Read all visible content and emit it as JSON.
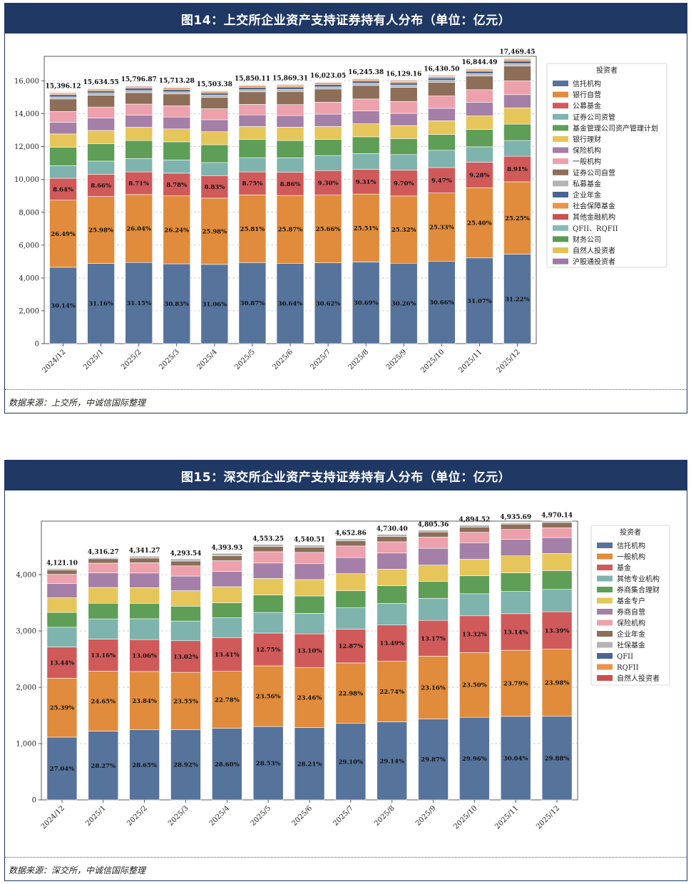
{
  "charts": [
    {
      "title": "图14：上交所企业资产支持证券持有人分布（单位：亿元）",
      "source": "数据来源：上交所，中诚信国际整理",
      "chart_data": {
        "type": "bar",
        "stacked": true,
        "title": "图14：上交所企业资产支持证券持有人分布（单位：亿元）",
        "categories": [
          "2024/12",
          "2025/1",
          "2025/2",
          "2025/3",
          "2025/4",
          "2025/5",
          "2025/6",
          "2025/7",
          "2025/8",
          "2025/9",
          "2025/10",
          "2025/11",
          "2025/12"
        ],
        "totals": [
          15396.12,
          15634.55,
          15796.87,
          15713.28,
          15503.38,
          15850.11,
          15869.31,
          16023.05,
          16245.38,
          16129.16,
          16430.5,
          16844.49,
          17469.45
        ],
        "total_labels": [
          "15,396.12",
          "15,634.55",
          "15,796.87",
          "15,713.28",
          "15,503.38",
          "15,850.11",
          "15,869.31",
          "16,023.05",
          "16,245.38",
          "16,129.16",
          "16,430.50",
          "16,844.49",
          "17,469.45"
        ],
        "ylim": [
          0,
          17500
        ],
        "yticks": [
          0,
          2000,
          4000,
          6000,
          8000,
          10000,
          12000,
          14000,
          16000
        ],
        "ytick_labels": [
          "0",
          "2,000",
          "4,000",
          "6,000",
          "8,000",
          "10,000",
          "12,000",
          "14,000",
          "16,000"
        ],
        "legend_title": "投资者",
        "legend_position": "right",
        "series": [
          {
            "name": "信托机构",
            "color": "#56739c",
            "pct": [
              30.14,
              31.16,
              31.15,
              30.83,
              31.06,
              30.87,
              30.64,
              30.62,
              30.69,
              30.26,
              30.66,
              31.07,
              31.22
            ],
            "labels": [
              "30.14%",
              "31.16%",
              "31.15%",
              "30.83%",
              "31.06%",
              "30.87%",
              "30.64%",
              "30.62%",
              "30.69%",
              "30.26%",
              "30.66%",
              "31.07%",
              "31.22%"
            ]
          },
          {
            "name": "银行自营",
            "color": "#e08c3c",
            "pct": [
              26.49,
              25.98,
              26.04,
              26.24,
              25.98,
              25.81,
              25.87,
              25.66,
              25.51,
              25.32,
              25.33,
              25.4,
              25.25
            ],
            "labels": [
              "26.49%",
              "25.98%",
              "26.04%",
              "26.24%",
              "25.98%",
              "25.81%",
              "25.87%",
              "25.66%",
              "25.51%",
              "25.32%",
              "25.33%",
              "25.40%",
              "25.25%"
            ]
          },
          {
            "name": "公募基金",
            "color": "#d05a5a",
            "pct": [
              8.64,
              8.66,
              8.71,
              8.78,
              8.83,
              8.75,
              8.86,
              9.3,
              9.31,
              9.7,
              9.47,
              9.28,
              8.91
            ],
            "labels": [
              "8.64%",
              "8.66%",
              "8.71%",
              "8.78%",
              "8.83%",
              "8.75%",
              "8.86%",
              "9.30%",
              "9.31%",
              "9.70%",
              "9.47%",
              "9.28%",
              "8.91%"
            ]
          },
          {
            "name": "证券公司资管",
            "color": "#7fb3ad",
            "pct": [
              5.0,
              5.1,
              5.1,
              5.1,
              5.1,
              5.4,
              5.5,
              5.7,
              5.9,
              5.9,
              6.4,
              5.6,
              5.5
            ]
          },
          {
            "name": "基金管理公司资产管理计划",
            "color": "#5e9e57",
            "pct": [
              7.2,
              6.8,
              6.9,
              7.0,
              7.0,
              7.0,
              6.6,
              6.1,
              6.3,
              6.0,
              5.9,
              6.3,
              5.7
            ]
          },
          {
            "name": "银行理财",
            "color": "#e6c65a",
            "pct": [
              5.3,
              5.1,
              5.1,
              5.0,
              5.1,
              4.9,
              5.1,
              4.9,
              4.9,
              4.9,
              5.1,
              4.9,
              5.7
            ]
          },
          {
            "name": "保险机构",
            "color": "#a47fa8",
            "pct": [
              4.6,
              4.8,
              4.7,
              4.6,
              4.7,
              4.4,
              4.4,
              4.7,
              4.8,
              4.6,
              4.6,
              4.9,
              4.6
            ]
          },
          {
            "name": "一般机构",
            "color": "#eca1ac",
            "pct": [
              4.3,
              4.3,
              4.2,
              4.3,
              4.3,
              4.0,
              4.2,
              4.5,
              4.5,
              4.5,
              4.6,
              4.6,
              4.8
            ]
          },
          {
            "name": "证券公司自营",
            "color": "#8c6e59",
            "pct": [
              4.9,
              4.6,
              4.4,
              4.6,
              4.5,
              4.8,
              5.0,
              5.0,
              5.1,
              5.3,
              5.0,
              5.0,
              5.2
            ]
          },
          {
            "name": "私募基金",
            "color": "#b4b4b4",
            "pct": [
              0.8,
              0.8,
              0.8,
              0.8,
              0.8,
              0.8,
              0.8,
              0.8,
              0.8,
              0.8,
              0.8,
              0.8,
              0.8
            ]
          },
          {
            "name": "企业年金",
            "color": "#4a6591",
            "pct": [
              0.9,
              0.9,
              0.9,
              0.9,
              0.9,
              0.9,
              0.9,
              0.9,
              0.9,
              0.9,
              0.9,
              0.9,
              0.9
            ]
          },
          {
            "name": "社会保障基金",
            "color": "#e8954b",
            "pct": [
              0.5,
              0.5,
              0.5,
              0.5,
              0.5,
              0.5,
              0.5,
              0.5,
              0.5,
              0.5,
              0.5,
              0.5,
              0.5
            ]
          },
          {
            "name": "其他金融机构",
            "color": "#c85151",
            "pct": [
              0.3,
              0.3,
              0.3,
              0.3,
              0.3,
              0.3,
              0.3,
              0.3,
              0.3,
              0.3,
              0.3,
              0.3,
              0.3
            ]
          },
          {
            "name": "QFII、RQFII",
            "color": "#86bcb6",
            "pct": [
              0.2,
              0.2,
              0.2,
              0.2,
              0.2,
              0.2,
              0.2,
              0.2,
              0.2,
              0.2,
              0.2,
              0.2,
              0.2
            ]
          },
          {
            "name": "财务公司",
            "color": "#5b9a55",
            "pct": [
              0.2,
              0.2,
              0.2,
              0.2,
              0.2,
              0.2,
              0.2,
              0.2,
              0.2,
              0.2,
              0.2,
              0.2,
              0.2
            ]
          },
          {
            "name": "自然人投资者",
            "color": "#e3c357",
            "pct": [
              0.2,
              0.2,
              0.2,
              0.2,
              0.2,
              0.2,
              0.2,
              0.2,
              0.2,
              0.2,
              0.2,
              0.2,
              0.2
            ]
          },
          {
            "name": "沪股通投资者",
            "color": "#9d7aa3",
            "pct": [
              0.1,
              0.1,
              0.1,
              0.1,
              0.1,
              0.1,
              0.1,
              0.1,
              0.1,
              0.1,
              0.1,
              0.1,
              0.1
            ]
          }
        ]
      }
    },
    {
      "title": "图15：深交所企业资产支持证券持有人分布（单位：亿元）",
      "source": "数据来源：深交所，中诚信国际整理",
      "chart_data": {
        "type": "bar",
        "stacked": true,
        "title": "图15：深交所企业资产支持证券持有人分布（单位：亿元）",
        "categories": [
          "2024/12",
          "2025/1",
          "2025/2",
          "2025/3",
          "2025/4",
          "2025/5",
          "2025/6",
          "2025/7",
          "2025/8",
          "2025/9",
          "2025/10",
          "2025/11",
          "2025/12"
        ],
        "totals": [
          4121.1,
          4316.27,
          4341.27,
          4293.54,
          4393.93,
          4553.25,
          4540.51,
          4652.86,
          4730.4,
          4805.36,
          4894.52,
          4935.69,
          4970.14
        ],
        "total_labels": [
          "4,121.10",
          "4,316.27",
          "4,341.27",
          "4,293.54",
          "4,393.93",
          "4,553.25",
          "4,540.51",
          "4,652.86",
          "4,730.40",
          "4,805.36",
          "4,894.52",
          "4,935.69",
          "4,970.14"
        ],
        "ylim": [
          0,
          4950
        ],
        "yticks": [
          0,
          1000,
          2000,
          3000,
          4000
        ],
        "ytick_labels": [
          "0",
          "1,000",
          "2,000",
          "3,000",
          "4,000"
        ],
        "legend_title": "投资者",
        "legend_position": "right",
        "series": [
          {
            "name": "信托机构",
            "color": "#56739c",
            "pct": [
              27.04,
              28.27,
              28.65,
              28.92,
              28.6,
              28.53,
              28.21,
              29.1,
              29.14,
              29.87,
              29.96,
              30.04,
              29.88
            ],
            "labels": [
              "27.04%",
              "28.27%",
              "28.65%",
              "28.92%",
              "28.60%",
              "28.53%",
              "28.21%",
              "29.10%",
              "29.14%",
              "29.87%",
              "29.96%",
              "30.04%",
              "29.88%"
            ]
          },
          {
            "name": "一般机构",
            "color": "#e08c3c",
            "pct": [
              25.39,
              24.65,
              23.84,
              23.55,
              22.78,
              23.56,
              23.46,
              22.98,
              22.74,
              23.16,
              23.5,
              23.79,
              23.98
            ],
            "labels": [
              "25.39%",
              "24.65%",
              "23.84%",
              "23.55%",
              "22.78%",
              "23.56%",
              "23.46%",
              "22.98%",
              "22.74%",
              "23.16%",
              "23.50%",
              "23.79%",
              "23.98%"
            ]
          },
          {
            "name": "基金",
            "color": "#d05a5a",
            "pct": [
              13.44,
              13.16,
              13.06,
              13.02,
              13.41,
              12.75,
              13.1,
              12.87,
              13.49,
              13.17,
              13.32,
              13.14,
              13.39
            ],
            "labels": [
              "13.44%",
              "13.16%",
              "13.06%",
              "13.02%",
              "13.41%",
              "12.75%",
              "13.10%",
              "12.87%",
              "13.49%",
              "13.17%",
              "13.32%",
              "13.14%",
              "13.39%"
            ]
          },
          {
            "name": "其他专业机构",
            "color": "#7fb3ad",
            "pct": [
              8.5,
              8.3,
              8.5,
              8.1,
              8.0,
              8.0,
              8.0,
              8.2,
              8.1,
              8.1,
              8.0,
              8.0,
              8.0
            ]
          },
          {
            "name": "券商集合理财",
            "color": "#5e9e57",
            "pct": [
              6.4,
              6.4,
              6.3,
              6.1,
              6.0,
              6.8,
              6.8,
              6.4,
              6.6,
              6.3,
              6.5,
              6.7,
              6.7
            ]
          },
          {
            "name": "基金专户",
            "color": "#e6c65a",
            "pct": [
              6.3,
              6.5,
              6.4,
              6.4,
              6.4,
              6.4,
              6.4,
              6.5,
              6.2,
              6.0,
              6.0,
              6.1,
              6.1
            ]
          },
          {
            "name": "券商自营",
            "color": "#a47fa8",
            "pct": [
              6.1,
              6.0,
              6.0,
              6.0,
              6.1,
              6.0,
              6.3,
              6.1,
              6.0,
              6.2,
              6.0,
              5.9,
              5.7
            ]
          },
          {
            "name": "保险机构",
            "color": "#eca1ac",
            "pct": [
              4.0,
              4.0,
              4.2,
              4.2,
              4.3,
              4.4,
              4.3,
              4.4,
              4.2,
              4.1,
              3.8,
              3.6,
              3.5
            ]
          },
          {
            "name": "企业年金",
            "color": "#8c6e59",
            "pct": [
              1.9,
              1.8,
              1.9,
              2.0,
              2.0,
              2.0,
              2.0,
              2.0,
              2.0,
              1.9,
              1.9,
              1.9,
              1.9
            ]
          },
          {
            "name": "社保基金",
            "color": "#b4b4b4",
            "pct": [
              0.6,
              0.5,
              0.8,
              0.9,
              1.0,
              0.9,
              0.9,
              0.8,
              0.8,
              0.7,
              0.7,
              0.5,
              0.6
            ]
          },
          {
            "name": "QFII",
            "color": "#4a6591",
            "pct": [
              0.1,
              0.1,
              0.1,
              0.1,
              0.1,
              0.1,
              0.1,
              0.1,
              0.1,
              0.1,
              0.1,
              0.1,
              0.1
            ]
          },
          {
            "name": "RQFII",
            "color": "#e8954b",
            "pct": [
              0.1,
              0.1,
              0.1,
              0.1,
              0.1,
              0.1,
              0.1,
              0.1,
              0.1,
              0.1,
              0.1,
              0.1,
              0.1
            ]
          },
          {
            "name": "自然人投资者",
            "color": "#c85151",
            "pct": [
              0.1,
              0.1,
              0.1,
              0.1,
              0.1,
              0.1,
              0.1,
              0.1,
              0.1,
              0.1,
              0.1,
              0.1,
              0.1
            ]
          }
        ]
      }
    }
  ]
}
